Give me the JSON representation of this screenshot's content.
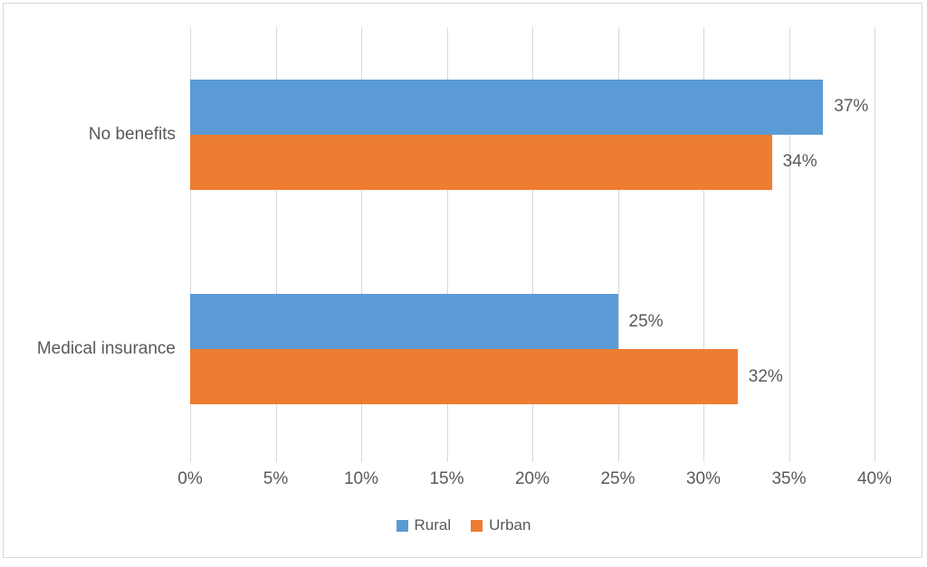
{
  "chart": {
    "title": "",
    "colors": {
      "background": "#FFFFFF",
      "border": "#D6D6D6",
      "gridline": "#D9D9D9",
      "text": "#595959",
      "rural": "#5B9BD5",
      "urban": "#ED7D31"
    },
    "legend": {
      "position": "bottom",
      "items": [
        {
          "label": "Rural",
          "color": "#5B9BD5"
        },
        {
          "label": "Urban",
          "color": "#ED7D31"
        }
      ]
    }
  },
  "chart_data": {
    "type": "bar",
    "orientation": "horizontal",
    "title": "",
    "xlabel": "",
    "ylabel": "",
    "categories": [
      "No benefits",
      "Medical insurance"
    ],
    "series": [
      {
        "name": "Rural",
        "color": "#5B9BD5",
        "values": [
          37,
          25
        ],
        "labels": [
          "37%",
          "25%"
        ]
      },
      {
        "name": "Urban",
        "color": "#ED7D31",
        "values": [
          34,
          32
        ],
        "labels": [
          "34%",
          "32%"
        ]
      }
    ],
    "x_axis": {
      "min": 0,
      "max": 40,
      "tick_step": 5,
      "ticks": [
        "0%",
        "5%",
        "10%",
        "15%",
        "20%",
        "25%",
        "30%",
        "35%",
        "40%"
      ]
    },
    "grid": true,
    "legend_position": "bottom"
  }
}
